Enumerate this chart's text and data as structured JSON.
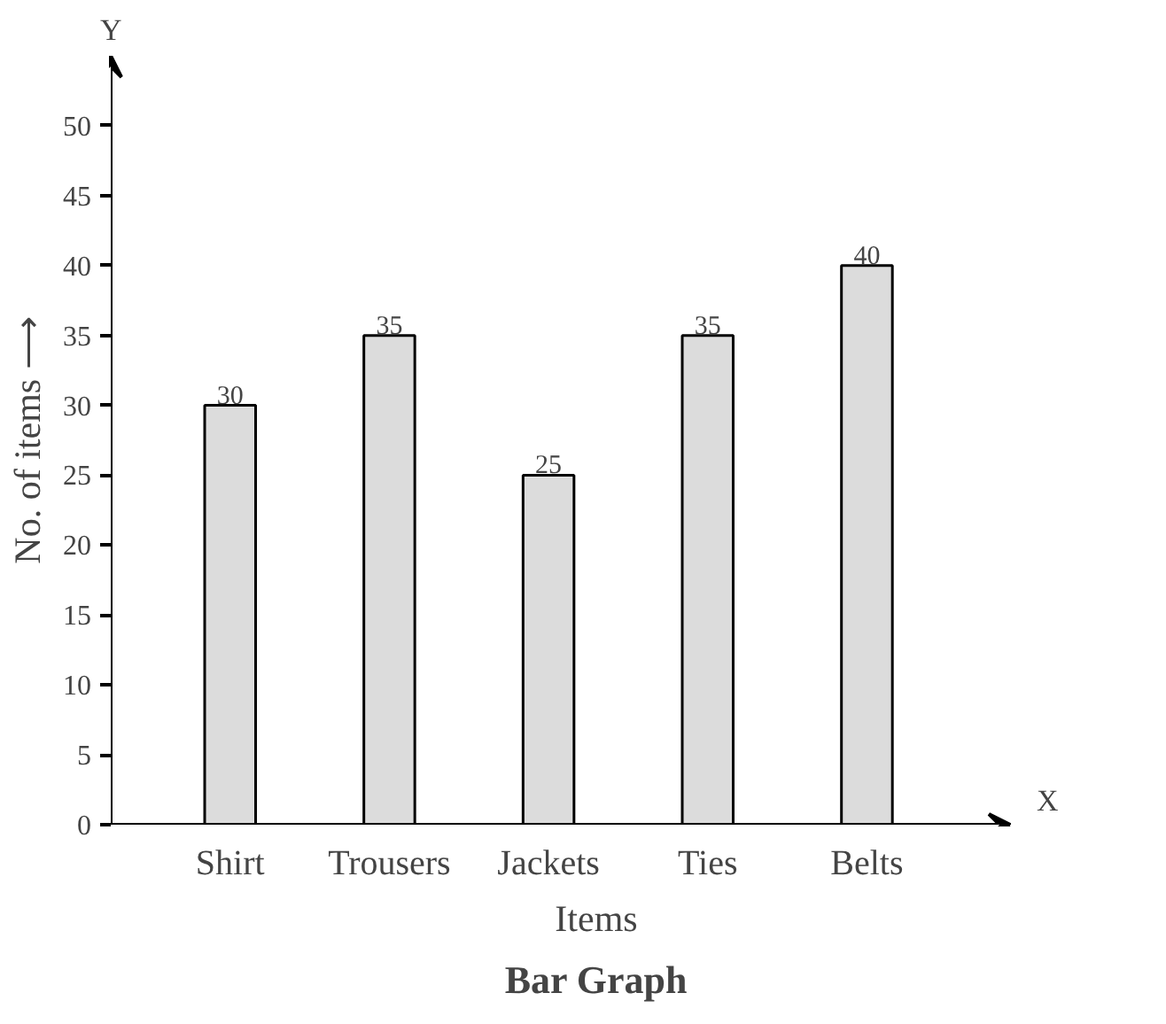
{
  "chart_data": {
    "type": "bar",
    "title": "Bar Graph",
    "xlabel": "Items",
    "ylabel": "No. of items ⟶",
    "categories": [
      "Shirt",
      "Trousers",
      "Jackets",
      "Ties",
      "Belts"
    ],
    "values": [
      30,
      35,
      25,
      35,
      40
    ],
    "color": "#dcdcdc",
    "ylim": [
      0,
      55
    ],
    "yticks": [
      0,
      5,
      10,
      15,
      20,
      25,
      30,
      35,
      40,
      45,
      50
    ],
    "data_labels": true,
    "grid": false,
    "annotations": [
      "Y",
      "X"
    ]
  }
}
